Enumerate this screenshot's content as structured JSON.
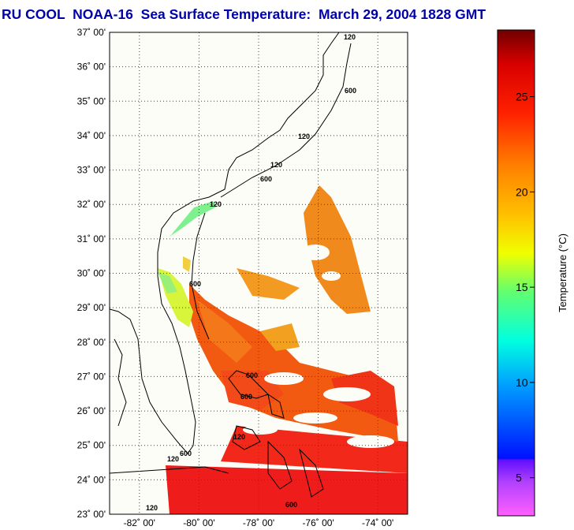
{
  "title": "RU COOL  NOAA-16  Sea Surface Temperature:  March 29, 2004 1828 GMT",
  "map": {
    "lat_labels": [
      "37˚ 00'",
      "36˚ 00'",
      "35˚ 00'",
      "34˚ 00'",
      "33˚ 00'",
      "32˚ 00'",
      "31˚ 00'",
      "30˚ 00'",
      "29˚ 00'",
      "28˚ 00'",
      "27˚ 00'",
      "26˚ 00'",
      "25˚ 00'",
      "24˚ 00'",
      "23˚ 00'"
    ],
    "lon_labels": [
      "-82˚ 00'",
      "-80˚ 00'",
      "-78˚ 00'",
      "-76˚ 00'",
      "-74˚ 00'"
    ],
    "lat_range": [
      23,
      37
    ],
    "lon_range": [
      -83,
      -73
    ],
    "contour_labels": [
      "120",
      "600"
    ]
  },
  "colorbar": {
    "title": "Temperature (°C)",
    "tick_values": [
      5,
      10,
      15,
      20,
      25
    ],
    "tick_labels": [
      "5",
      "10",
      "15",
      "20",
      "25"
    ],
    "range": [
      3,
      28.5
    ],
    "colors": [
      "#ff60ff",
      "#9020ff",
      "#0010ff",
      "#00a0ff",
      "#00ffe0",
      "#60ff70",
      "#f0ff00",
      "#ffc000",
      "#ff8000",
      "#ff2000",
      "#d80000",
      "#700000"
    ]
  }
}
